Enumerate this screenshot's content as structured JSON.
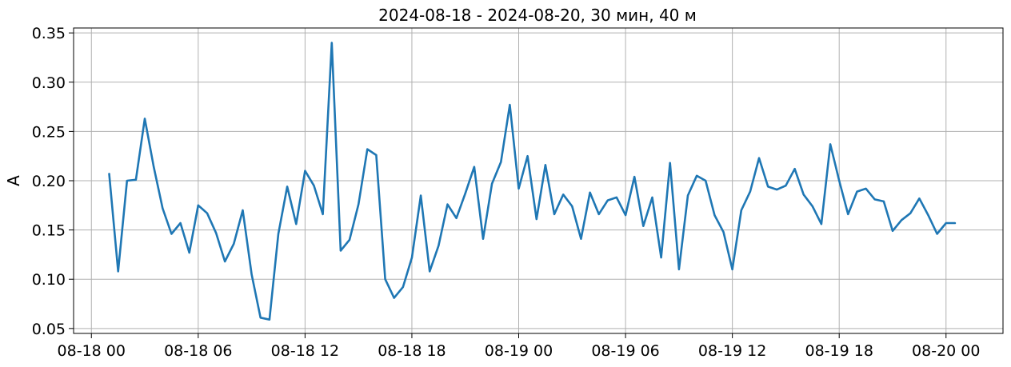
{
  "chart_data": {
    "type": "line",
    "title": "2024-08-18 - 2024-08-20, 30 мин, 40 м",
    "xlabel": "",
    "ylabel": "A",
    "x_unit": "hours",
    "xlim": [
      -1.0,
      51.2
    ],
    "ylim": [
      0.045,
      0.355
    ],
    "grid": true,
    "x_ticks": [
      {
        "value": 0,
        "label": "08-18 00"
      },
      {
        "value": 6,
        "label": "08-18 06"
      },
      {
        "value": 12,
        "label": "08-18 12"
      },
      {
        "value": 18,
        "label": "08-18 18"
      },
      {
        "value": 24,
        "label": "08-19 00"
      },
      {
        "value": 30,
        "label": "08-19 06"
      },
      {
        "value": 36,
        "label": "08-19 12"
      },
      {
        "value": 42,
        "label": "08-19 18"
      },
      {
        "value": 48,
        "label": "08-20 00"
      }
    ],
    "y_ticks": [
      {
        "value": 0.05,
        "label": "0.05"
      },
      {
        "value": 0.1,
        "label": "0.10"
      },
      {
        "value": 0.15,
        "label": "0.15"
      },
      {
        "value": 0.2,
        "label": "0.20"
      },
      {
        "value": 0.25,
        "label": "0.25"
      },
      {
        "value": 0.3,
        "label": "0.30"
      },
      {
        "value": 0.35,
        "label": "0.35"
      }
    ],
    "series": [
      {
        "color": "#1f77b4",
        "x": [
          1.0,
          1.5,
          2.0,
          2.5,
          3.0,
          3.5,
          4.0,
          4.5,
          5.0,
          5.5,
          6.0,
          6.5,
          7.0,
          7.5,
          8.0,
          8.5,
          9.0,
          9.5,
          10.0,
          10.5,
          11.0,
          11.5,
          12.0,
          12.5,
          13.0,
          13.5,
          14.0,
          14.5,
          15.0,
          15.5,
          16.0,
          16.5,
          17.0,
          17.5,
          18.0,
          18.5,
          19.0,
          19.5,
          20.0,
          20.5,
          21.0,
          21.5,
          22.0,
          22.5,
          23.0,
          23.5,
          24.0,
          24.5,
          25.0,
          25.5,
          26.0,
          26.5,
          27.0,
          27.5,
          28.0,
          28.5,
          29.0,
          29.5,
          30.0,
          30.5,
          31.0,
          31.5,
          32.0,
          32.5,
          33.0,
          33.5,
          34.0,
          34.5,
          35.0,
          35.5,
          36.0,
          36.5,
          37.0,
          37.5,
          38.0,
          38.5,
          39.0,
          39.5,
          40.0,
          40.5,
          41.0,
          41.5,
          42.0,
          42.5,
          43.0,
          43.5,
          44.0,
          44.5,
          45.0,
          45.5,
          46.0,
          46.5,
          47.0,
          47.5,
          48.0,
          48.5
        ],
        "y": [
          0.207,
          0.108,
          0.2,
          0.201,
          0.263,
          0.214,
          0.172,
          0.146,
          0.157,
          0.127,
          0.175,
          0.167,
          0.147,
          0.118,
          0.136,
          0.17,
          0.105,
          0.061,
          0.059,
          0.146,
          0.194,
          0.156,
          0.21,
          0.195,
          0.166,
          0.34,
          0.129,
          0.14,
          0.176,
          0.232,
          0.226,
          0.1,
          0.081,
          0.092,
          0.122,
          0.185,
          0.108,
          0.134,
          0.176,
          0.162,
          0.187,
          0.214,
          0.141,
          0.197,
          0.219,
          0.277,
          0.192,
          0.225,
          0.161,
          0.216,
          0.166,
          0.186,
          0.174,
          0.141,
          0.188,
          0.166,
          0.18,
          0.183,
          0.165,
          0.204,
          0.154,
          0.183,
          0.122,
          0.218,
          0.11,
          0.185,
          0.205,
          0.2,
          0.165,
          0.148,
          0.11,
          0.17,
          0.189,
          0.223,
          0.194,
          0.191,
          0.195,
          0.212,
          0.186,
          0.174,
          0.156,
          0.237,
          0.2,
          0.166,
          0.189,
          0.192,
          0.181,
          0.179,
          0.149,
          0.16,
          0.167,
          0.182,
          0.165,
          0.146,
          0.157,
          0.157
        ]
      }
    ]
  }
}
